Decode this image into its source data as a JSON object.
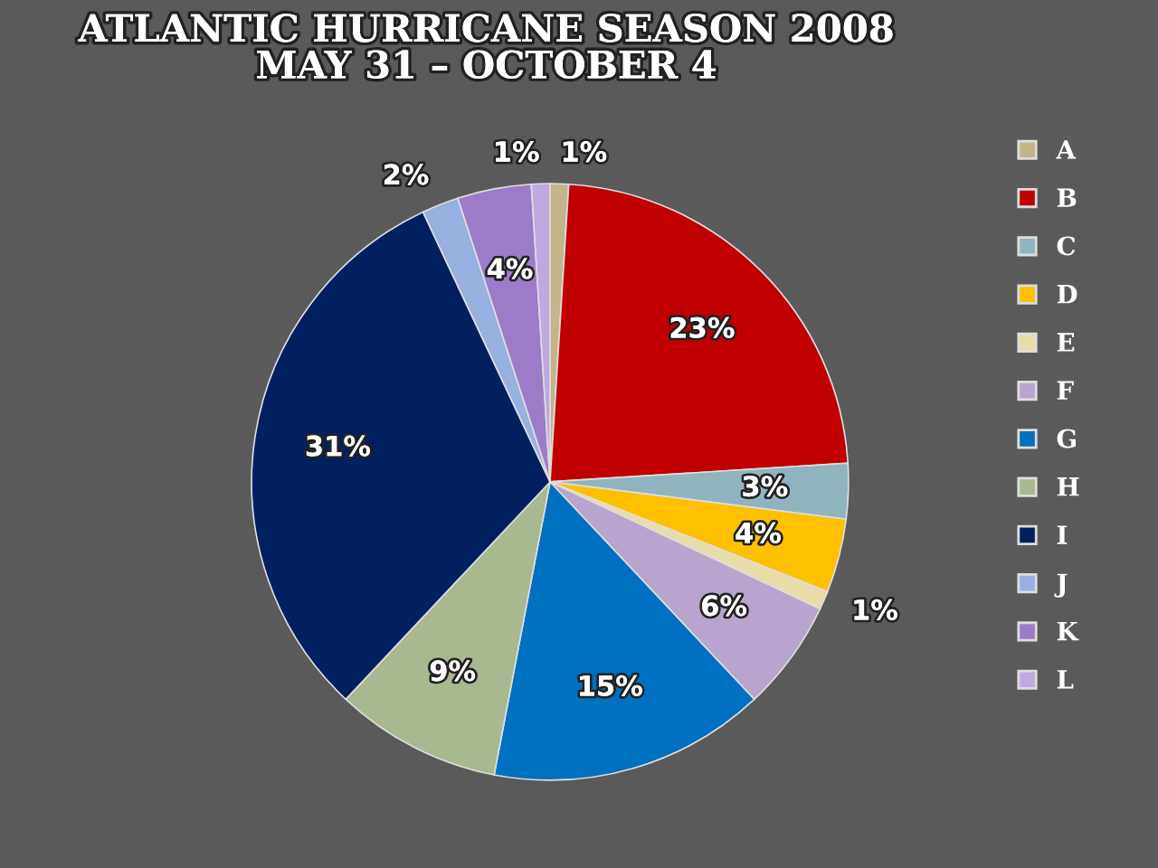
{
  "chart_data": {
    "type": "pie",
    "title": "ATLANTIC HURRICANE SEASON 2008\nMAY 31 – OCTOBER 4",
    "categories": [
      "A",
      "B",
      "C",
      "D",
      "E",
      "F",
      "G",
      "H",
      "I",
      "J",
      "K",
      "L"
    ],
    "values": [
      1,
      23,
      3,
      4,
      1,
      6,
      15,
      9,
      31,
      2,
      4,
      1
    ],
    "value_labels": [
      "1%",
      "23%",
      "3%",
      "4%",
      "1%",
      "6%",
      "15%",
      "9%",
      "31%",
      "2%",
      "4%",
      "1%"
    ],
    "colors": [
      "#c4b48a",
      "#c00000",
      "#8fb4c0",
      "#ffc000",
      "#e8dca8",
      "#b8a4cc",
      "#0070c0",
      "#a8b890",
      "#002060",
      "#98b0e0",
      "#9c7cc8",
      "#c0a8e0"
    ],
    "legend": "right"
  }
}
